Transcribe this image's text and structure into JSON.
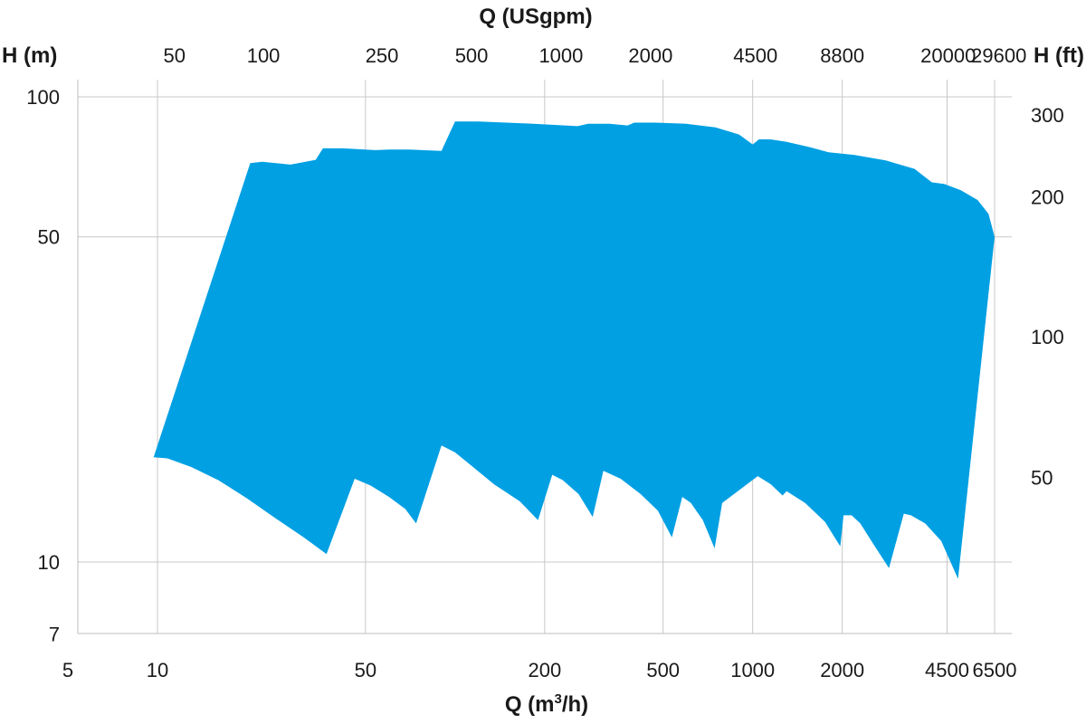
{
  "chart_data": {
    "type": "area",
    "title": "",
    "colors": {
      "envelope": "#00a0e3",
      "grid": "#c8c8c8",
      "text": "#1a1a1a",
      "background": "#ffffff"
    },
    "grid": true,
    "x_axis": {
      "label_html": "Q (m³/h)",
      "label_parts": {
        "base": "Q (m",
        "sup": "3",
        "tail": "/h)"
      },
      "scale": "log",
      "range": [
        5,
        6500
      ],
      "ticks": [
        5,
        10,
        50,
        200,
        500,
        1000,
        2000,
        4500,
        6500
      ],
      "tick_labels": [
        "5",
        "10",
        "50",
        "200",
        "500",
        "1000",
        "2000",
        "4500",
        "6500"
      ],
      "gridlines": [
        10,
        50,
        200,
        500,
        1000,
        2000,
        4500,
        6500
      ]
    },
    "x2_axis": {
      "label": "Q (USgpm)",
      "position": "top",
      "ticks": [
        {
          "label": "50",
          "at_m3h": 11.4
        },
        {
          "label": "100",
          "at_m3h": 22.7
        },
        {
          "label": "250",
          "at_m3h": 56.8
        },
        {
          "label": "500",
          "at_m3h": 113.6
        },
        {
          "label": "1000",
          "at_m3h": 227
        },
        {
          "label": "2000",
          "at_m3h": 454
        },
        {
          "label": "4500",
          "at_m3h": 1022
        },
        {
          "label": "8800",
          "at_m3h": 2000
        },
        {
          "label": "20000",
          "at_m3h": 4540
        },
        {
          "label": "29600",
          "at_m3h": 6720
        }
      ]
    },
    "y_axis": {
      "label": "H (m)",
      "scale": "log",
      "range": [
        7,
        100
      ],
      "ticks": [
        7,
        10,
        50,
        100
      ],
      "tick_labels": [
        "7",
        "10",
        "50",
        "100"
      ],
      "gridlines": [
        10,
        50,
        100
      ]
    },
    "y2_axis": {
      "label": "H (ft)",
      "position": "right",
      "ticks": [
        {
          "label": "300",
          "at_m": 91.4
        },
        {
          "label": "200",
          "at_m": 61
        },
        {
          "label": "100",
          "at_m": 30.5
        },
        {
          "label": "50",
          "at_m": 15.2
        }
      ]
    },
    "envelope": {
      "name": "",
      "points": [
        [
          9.7,
          16.8
        ],
        [
          10.8,
          16.7
        ],
        [
          13,
          16.0
        ],
        [
          16,
          15.0
        ],
        [
          20,
          13.7
        ],
        [
          25,
          12.4
        ],
        [
          31,
          11.3
        ],
        [
          37,
          10.4
        ],
        [
          46,
          15.1
        ],
        [
          52,
          14.6
        ],
        [
          60,
          13.8
        ],
        [
          68,
          13.0
        ],
        [
          74,
          12.1
        ],
        [
          90,
          17.8
        ],
        [
          100,
          17.2
        ],
        [
          115,
          16.0
        ],
        [
          135,
          14.7
        ],
        [
          165,
          13.5
        ],
        [
          190,
          12.3
        ],
        [
          212,
          15.4
        ],
        [
          230,
          15.0
        ],
        [
          260,
          14.0
        ],
        [
          290,
          12.5
        ],
        [
          315,
          15.7
        ],
        [
          360,
          15.1
        ],
        [
          420,
          14.0
        ],
        [
          480,
          12.9
        ],
        [
          535,
          11.3
        ],
        [
          580,
          13.8
        ],
        [
          620,
          13.4
        ],
        [
          680,
          12.3
        ],
        [
          745,
          10.7
        ],
        [
          790,
          13.4
        ],
        [
          1040,
          15.3
        ],
        [
          1150,
          14.7
        ],
        [
          1260,
          13.9
        ],
        [
          1300,
          14.2
        ],
        [
          1500,
          13.4
        ],
        [
          1750,
          12.2
        ],
        [
          1970,
          10.8
        ],
        [
          2020,
          12.6
        ],
        [
          2150,
          12.6
        ],
        [
          2300,
          12.1
        ],
        [
          2550,
          10.9
        ],
        [
          2870,
          9.7
        ],
        [
          3220,
          12.7
        ],
        [
          3400,
          12.6
        ],
        [
          3800,
          12.1
        ],
        [
          4300,
          11.1
        ],
        [
          4900,
          9.2
        ],
        [
          6500,
          50
        ],
        [
          6200,
          56
        ],
        [
          5700,
          60
        ],
        [
          5000,
          63
        ],
        [
          4400,
          65
        ],
        [
          4000,
          65.5
        ],
        [
          3500,
          70
        ],
        [
          2800,
          73
        ],
        [
          2200,
          75
        ],
        [
          1800,
          76
        ],
        [
          1550,
          78
        ],
        [
          1300,
          80
        ],
        [
          1150,
          81
        ],
        [
          1050,
          81
        ],
        [
          1000,
          79
        ],
        [
          900,
          83
        ],
        [
          750,
          86
        ],
        [
          600,
          87.5
        ],
        [
          470,
          88
        ],
        [
          400,
          88
        ],
        [
          380,
          86.8
        ],
        [
          330,
          87.5
        ],
        [
          280,
          87.5
        ],
        [
          258,
          86.5
        ],
        [
          180,
          87.6
        ],
        [
          120,
          88.5
        ],
        [
          100,
          88.5
        ],
        [
          90,
          76.5
        ],
        [
          70,
          77
        ],
        [
          60,
          77
        ],
        [
          54,
          76.8
        ],
        [
          42,
          77.5
        ],
        [
          36,
          77.5
        ],
        [
          34,
          73.2
        ],
        [
          28,
          71.5
        ],
        [
          22.5,
          72.5
        ],
        [
          20.5,
          72
        ]
      ]
    }
  }
}
